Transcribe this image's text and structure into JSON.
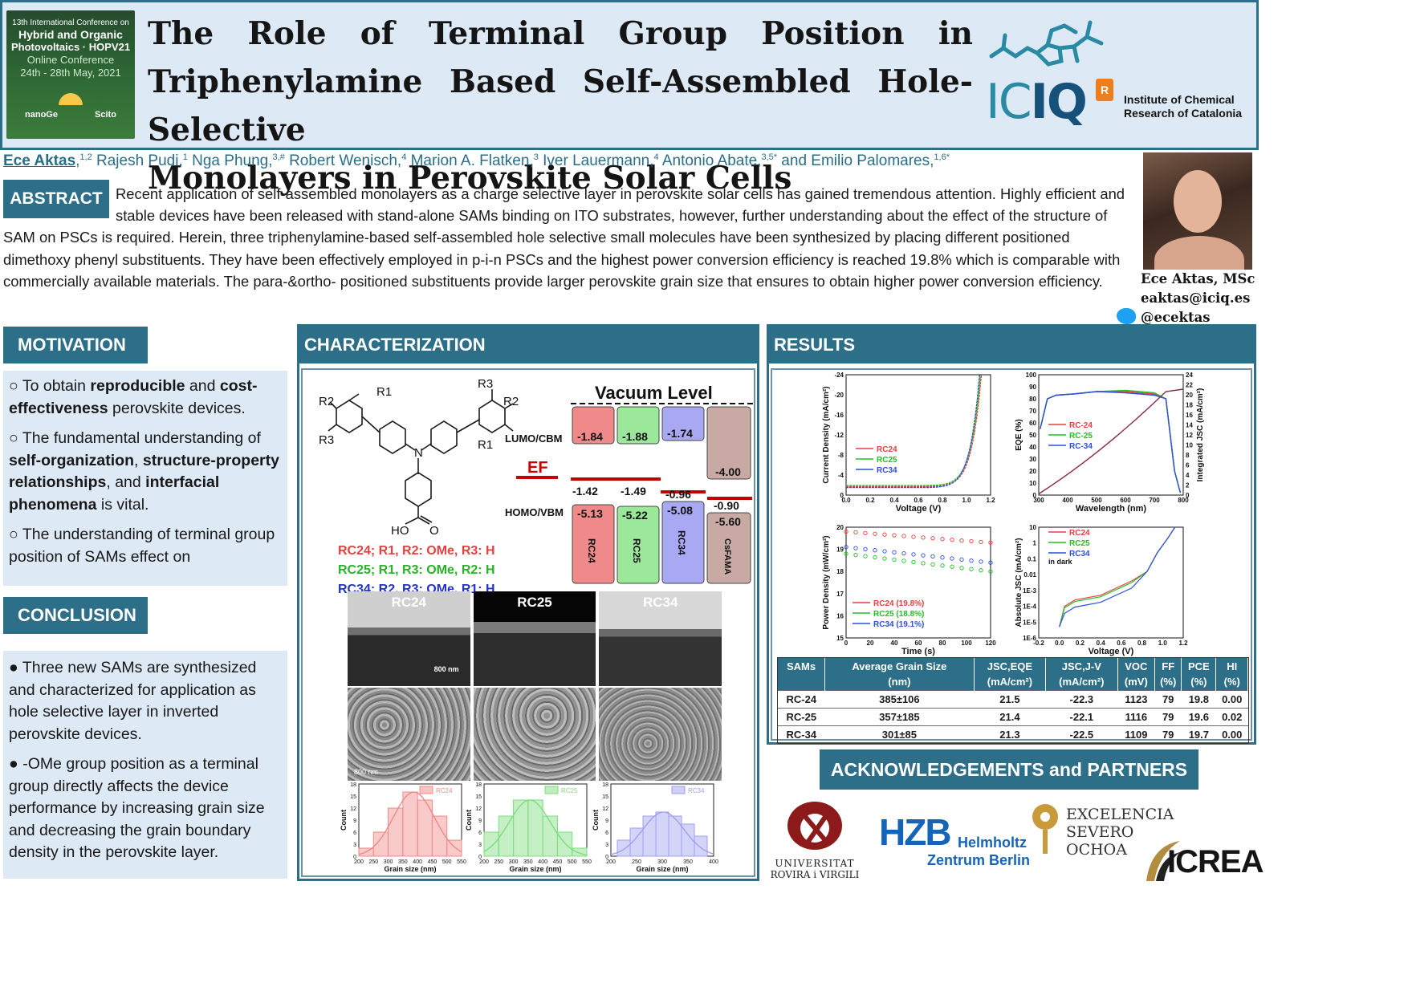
{
  "conference": {
    "line1": "13th International Conference on",
    "line2": "Hybrid and Organic",
    "line3": "Photovoltaics · HOPV21",
    "line4": "Online Conference",
    "line5": "24th - 28th May, 2021",
    "sponsor1": "nanoGe",
    "sponsor2": "Scito"
  },
  "title": {
    "line1": "The Role of Terminal Group Position in",
    "line2": "Triphenylamine Based Self-Assembled Hole-Selective",
    "line3": "Monolayers in Perovskite Solar Cells"
  },
  "institute": {
    "logo_light": "IC",
    "logo_bold": "IQ",
    "logo_badge": "R",
    "name_line1": "Institute of Chemical",
    "name_line2": "Research of Catalonia"
  },
  "authors": [
    {
      "name": "Ece Aktas",
      "sup": "1,2"
    },
    {
      "name": "Rajesh Pudi",
      "sup": "1"
    },
    {
      "name": "Nga Phung",
      "sup": "3,#"
    },
    {
      "name": "Robert Wenisch",
      "sup": "4"
    },
    {
      "name": "Marion A. Flatken",
      "sup": "3"
    },
    {
      "name": "Iver Lauermann",
      "sup": "4"
    },
    {
      "name": "Antonio Abate",
      "sup": "3,5*"
    },
    {
      "name": "Emilio Palomares",
      "sup": "1,6*"
    }
  ],
  "abstract": {
    "heading": "ABSTRACT",
    "text": "Recent application of self-assembled monolayers as a charge selective layer in perovskite solar cells has gained tremendous attention. Highly efficient and stable devices have been released with stand-alone SAMs binding on ITO substrates, however, further understanding about the effect of the structure of SAM on PSCs is required. Herein, three triphenylamine-based self-assembled hole selective small molecules have been synthesized by placing different positioned dimethoxy phenyl substituents. They have been effectively employed in p-i-n PSCs and the highest power conversion efficiency is reached 19.8% which is comparable with commercially available materials. The para-&ortho- positioned substituents provide larger perovskite grain size that ensures to obtain higher power conversion efficiency."
  },
  "contact": {
    "name": "Ece Aktas, MSc",
    "email": "eaktas@iciq.es",
    "twitter": "@ecektas"
  },
  "motivation": {
    "heading": "MOTIVATION",
    "b1_pre": "○  To obtain ",
    "b1_bold1": "reproducible",
    "b1_mid": " and ",
    "b1_bold2": "cost-effectiveness",
    "b1_post": " perovskite devices.",
    "b2_pre": "○ The fundamental understanding of ",
    "b2_bold1": "self-organization",
    "b2_sep1": ", ",
    "b2_bold2": "structure-property relationships",
    "b2_sep2": ", and ",
    "b2_bold3": "interfacial phenomena",
    "b2_post": " is vital.",
    "b3": "○ The understanding of terminal group position of SAMs effect on"
  },
  "conclusion": {
    "heading": "CONCLUSION",
    "b1": "● Three new SAMs are synthesized and characterized for application as hole selective layer in inverted perovskite devices.",
    "b2": "● -OMe group position as a terminal group directly affects the device performance by increasing grain size and decreasing the grain boundary density in the perovskite layer."
  },
  "characterization": {
    "heading": "CHARACTERIZATION",
    "molecule_labels": {
      "r2a": "R2",
      "r1a": "R1",
      "r3a": "R3",
      "r3b": "R3",
      "r2b": "R2",
      "r1b": "R1",
      "n": "N",
      "acid": "HO",
      "o": "O"
    },
    "variants": [
      {
        "text": "RC24; R1, R2: OMe, R3: H",
        "color": "#e8403e"
      },
      {
        "text": "RC25; R1, R3: OMe, R2: H",
        "color": "#27b427"
      },
      {
        "text": "RC34; R2, R3: OMe, R1: H",
        "color": "#2233cc"
      }
    ],
    "energy": {
      "vacuum": "Vacuum Level",
      "lumo_label": "LUMO/CBM",
      "homo_label": "HOMO/VBM",
      "ef_label": "EF",
      "columns": [
        {
          "name": "RC24",
          "lumo": "-1.84",
          "homo": "-5.13",
          "ef_gap": "-1.42",
          "color": "#f08a8a"
        },
        {
          "name": "RC25",
          "lumo": "-1.88",
          "homo": "-5.22",
          "ef_gap": "-1.49",
          "color": "#9be89b"
        },
        {
          "name": "RC34",
          "lumo": "-1.74",
          "homo": "-5.08",
          "ef_gap": "-0.96",
          "color": "#a9a9f3"
        },
        {
          "name": "CsFAMA",
          "lumo": "-4.00",
          "homo": "-5.60",
          "ef_gap": "-0.90",
          "color": "#c8a9a3"
        }
      ]
    },
    "sem_labels": [
      "RC24",
      "RC25",
      "RC34"
    ],
    "scale_bar": "800 nm",
    "histograms": [
      {
        "type": "bar",
        "legend": "RC24",
        "color": "#f08a8a",
        "xlabel": "Grain size (nm)",
        "ylabel": "Count",
        "x": [
          225,
          275,
          325,
          375,
          425,
          475,
          525
        ],
        "values": [
          2,
          6,
          12,
          16,
          14,
          10,
          4
        ],
        "xlim": [
          200,
          550
        ],
        "ylim": [
          0,
          18
        ],
        "xticks": [
          200,
          250,
          300,
          350,
          400,
          450,
          500,
          550
        ],
        "yticks": [
          0,
          3,
          6,
          9,
          12,
          15,
          18
        ]
      },
      {
        "type": "bar",
        "legend": "RC25",
        "color": "#7fdc7f",
        "xlabel": "Grain size (nm)",
        "ylabel": "Count",
        "x": [
          225,
          275,
          325,
          375,
          425,
          475,
          525
        ],
        "values": [
          6,
          10,
          14,
          14,
          10,
          6,
          2
        ],
        "xlim": [
          200,
          550
        ],
        "ylim": [
          0,
          18
        ],
        "xticks": [
          200,
          250,
          300,
          350,
          400,
          450,
          500,
          550
        ],
        "yticks": [
          0,
          3,
          6,
          9,
          12,
          15,
          18
        ]
      },
      {
        "type": "bar",
        "legend": "RC34",
        "color": "#9f9ff0",
        "xlabel": "Grain size (nm)",
        "ylabel": "Count",
        "x": [
          225,
          250,
          275,
          300,
          325,
          350,
          375
        ],
        "values": [
          4,
          7,
          10,
          11,
          10,
          8,
          5
        ],
        "xlim": [
          200,
          400
        ],
        "ylim": [
          0,
          18
        ],
        "xticks": [
          200,
          250,
          300,
          350,
          400
        ],
        "yticks": [
          0,
          3,
          6,
          9,
          12,
          15,
          18
        ]
      }
    ]
  },
  "results": {
    "heading": "RESULTS",
    "series_colors": {
      "RC24": "#e8403e",
      "RC25": "#22c022",
      "RC34": "#2d4fe0"
    },
    "jv": {
      "type": "line",
      "xlabel": "Voltage (V)",
      "ylabel": "Current Density (mA/cm²)",
      "xlim": [
        0.0,
        1.2
      ],
      "ylim": [
        0,
        -24
      ],
      "xticks": [
        "0.0",
        "0.2",
        "0.4",
        "0.6",
        "0.8",
        "1.0",
        "1.2"
      ],
      "yticks": [
        "-24",
        "-20",
        "-16",
        "-12",
        "-8",
        "-4",
        "0"
      ],
      "legend": [
        "RC24",
        "RC25",
        "RC34"
      ],
      "series": [
        {
          "name": "RC24",
          "jsc": -22.3,
          "voc": 1.123
        },
        {
          "name": "RC25",
          "jsc": -22.1,
          "voc": 1.116
        },
        {
          "name": "RC34",
          "jsc": -22.5,
          "voc": 1.109
        }
      ]
    },
    "eqe": {
      "type": "line",
      "xlabel": "Wavelength (nm)",
      "ylabel": "EQE (%)",
      "ylabel2": "Integrated JSC (mA/cm²)",
      "xlim": [
        300,
        800
      ],
      "ylim": [
        0,
        100
      ],
      "ylim2": [
        0,
        24
      ],
      "xticks": [
        "300",
        "400",
        "500",
        "600",
        "700",
        "800"
      ],
      "yticks": [
        "0",
        "10",
        "20",
        "30",
        "40",
        "50",
        "60",
        "70",
        "80",
        "90",
        "100"
      ],
      "yticks2": [
        "0",
        "2",
        "4",
        "6",
        "8",
        "10",
        "12",
        "14",
        "16",
        "18",
        "20",
        "22",
        "24"
      ],
      "legend": [
        "RC-24",
        "RC-25",
        "RC-34"
      ]
    },
    "mpp": {
      "type": "line",
      "xlabel": "Time (s)",
      "ylabel": "Power Density (mW/cm²)",
      "xlim": [
        0,
        120
      ],
      "ylim": [
        15,
        20
      ],
      "xticks": [
        "0",
        "20",
        "40",
        "60",
        "80",
        "100",
        "120"
      ],
      "yticks": [
        "15",
        "16",
        "17",
        "18",
        "19",
        "20"
      ],
      "legend": [
        "RC24 (19.8%)",
        "RC25 (18.8%)",
        "RC34 (19.1%)"
      ],
      "series": [
        {
          "name": "RC24",
          "start": 19.8,
          "end": 19.3
        },
        {
          "name": "RC25",
          "start": 18.8,
          "end": 18.0
        },
        {
          "name": "RC34",
          "start": 19.1,
          "end": 18.4
        }
      ]
    },
    "dark": {
      "type": "line",
      "xlabel": "Voltage (V)",
      "ylabel": "Absolute JSC (mA/cm²)",
      "note": "in dark",
      "xlim": [
        -0.2,
        1.2
      ],
      "xticks": [
        "-0.2",
        "0.0",
        "0.2",
        "0.4",
        "0.6",
        "0.8",
        "1.0",
        "1.2"
      ],
      "yticks": [
        "1E-6",
        "1E-5",
        "1E-4",
        "1E-3",
        "0.01",
        "0.1",
        "1",
        "10"
      ],
      "legend": [
        "RC24",
        "RC25",
        "RC34"
      ]
    },
    "table": {
      "headers": [
        "SAMs",
        "Average Grain Size",
        "JSC,EQE",
        "JSC,J-V",
        "VOC",
        "FF",
        "PCE",
        "HI"
      ],
      "units": [
        "",
        "(nm)",
        "(mA/cm²)",
        "(mA/cm²)",
        "(mV)",
        "(%)",
        "(%)",
        "(%)"
      ],
      "rows": [
        [
          "RC-24",
          "385±106",
          "21.5",
          "-22.3",
          "1123",
          "79",
          "19.8",
          "0.00"
        ],
        [
          "RC-25",
          "357±185",
          "21.4",
          "-22.1",
          "1116",
          "79",
          "19.6",
          "0.02"
        ],
        [
          "RC-34",
          "301±85",
          "21.3",
          "-22.5",
          "1109",
          "79",
          "19.7",
          "0.00"
        ]
      ]
    }
  },
  "acknowledgements": {
    "heading": "ACKNOWLEDGEMENTS and PARTNERS",
    "urv_line1": "UNIVERSITAT",
    "urv_line2": "ROVIRA i VIRGILI",
    "hzb": "HZB",
    "hzb_line1": "Helmholtz",
    "hzb_line2": "Zentrum Berlin",
    "severo_line1": "EXCELENCIA",
    "severo_line2": "SEVERO",
    "severo_line3": "OCHOA",
    "icrea": "ICREA"
  }
}
